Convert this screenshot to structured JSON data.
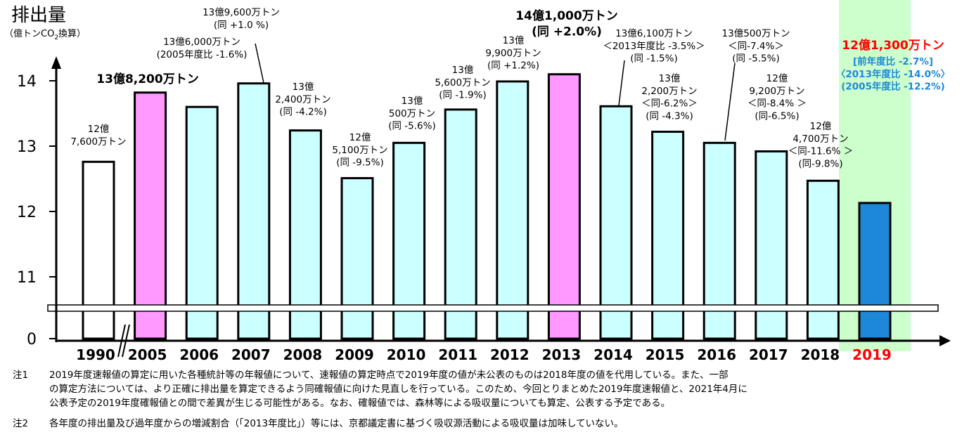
{
  "chart_data": {
    "type": "bar",
    "title": "排出量",
    "ylabel": "（億トンCO₂換算）",
    "ylabel_main": "（億トンCO",
    "ylabel_sub": "2",
    "ylabel_end": "換算）",
    "ylim": [
      11,
      14.5
    ],
    "axis_break": true,
    "y_ticks": [
      {
        "label": "14",
        "value": 14
      },
      {
        "label": "13",
        "value": 13
      },
      {
        "label": "12",
        "value": 12
      },
      {
        "label": "11",
        "value": 11
      },
      {
        "label": "0",
        "value": 0
      }
    ],
    "categories": [
      "1990",
      "2005",
      "2006",
      "2007",
      "2008",
      "2009",
      "2010",
      "2011",
      "2012",
      "2013",
      "2014",
      "2015",
      "2016",
      "2017",
      "2018",
      "2019"
    ],
    "values": [
      12.76,
      13.82,
      13.6,
      13.96,
      13.24,
      12.51,
      13.05,
      13.56,
      13.99,
      14.1,
      13.61,
      13.22,
      13.05,
      12.92,
      12.47,
      12.13
    ],
    "bar_colors": [
      "#ffffff",
      "#ff99ff",
      "#ccffff",
      "#ccffff",
      "#ccffff",
      "#ccffff",
      "#ccffff",
      "#ccffff",
      "#ccffff",
      "#ff99ff",
      "#ccffff",
      "#ccffff",
      "#ccffff",
      "#ccffff",
      "#ccffff",
      "#1e88d8"
    ],
    "highlight_color": "#ccffcc",
    "highlight_category": "2019",
    "highlight_label_color": "#ff0000",
    "labels": [
      {
        "category": "1990",
        "lines": [
          "12億",
          "7,600万トン"
        ],
        "bold": false,
        "color": "#000000"
      },
      {
        "category": "2005",
        "lines": [
          "13億8,200万トン"
        ],
        "bold": true,
        "color": "#000000"
      },
      {
        "category": "2006",
        "lines": [
          "13億6,000万トン",
          "(2005年度比 -1.6%)"
        ],
        "bold": false,
        "color": "#000000"
      },
      {
        "category": "2007",
        "lines": [
          "13億9,600万トン",
          "(同 +1.0 %)"
        ],
        "bold": false,
        "color": "#000000"
      },
      {
        "category": "2008",
        "lines": [
          "13億",
          "2,400万トン",
          "(同 -4.2%)"
        ],
        "bold": false,
        "color": "#000000"
      },
      {
        "category": "2009",
        "lines": [
          "12億",
          "5,100万トン",
          "(同 -9.5%)"
        ],
        "bold": false,
        "color": "#000000"
      },
      {
        "category": "2010",
        "lines": [
          "13億",
          "500万トン",
          "(同 -5.6%)"
        ],
        "bold": false,
        "color": "#000000"
      },
      {
        "category": "2011",
        "lines": [
          "13億",
          "5,600万トン",
          "(同 -1.9%)"
        ],
        "bold": false,
        "color": "#000000"
      },
      {
        "category": "2012",
        "lines": [
          "13億",
          "9,900万トン",
          "(同 +1.2%)"
        ],
        "bold": false,
        "color": "#000000"
      },
      {
        "category": "2013",
        "lines": [
          "14億1,000万トン",
          "(同 +2.0%)"
        ],
        "bold": true,
        "color": "#000000"
      },
      {
        "category": "2014",
        "lines": [
          "13億6,100万トン",
          "＜2013年度比 -3.5%＞",
          "(同 -1.5%)"
        ],
        "bold": false,
        "color": "#000000"
      },
      {
        "category": "2015",
        "lines": [
          "13億",
          "2,200万トン",
          "＜同-6.2%＞",
          "(同 -4.3%)"
        ],
        "bold": false,
        "color": "#000000"
      },
      {
        "category": "2016",
        "lines": [
          "13億500万トン",
          "＜同-7.4%＞",
          "(同 -5.5%)"
        ],
        "bold": false,
        "color": "#000000"
      },
      {
        "category": "2017",
        "lines": [
          "12億",
          "9,200万トン",
          "＜同-8.4% ＞",
          "(同-6.5%)"
        ],
        "bold": false,
        "color": "#000000"
      },
      {
        "category": "2018",
        "lines": [
          "12億",
          "4,700万トン",
          "＜同-11.6% ＞",
          "(同-9.8%)"
        ],
        "bold": false,
        "color": "#000000"
      },
      {
        "category": "2019",
        "lines": [
          "12億1,300万トン"
        ],
        "bold": true,
        "color": "#ff0000"
      },
      {
        "category": "2019",
        "lines": [
          "[前年度比 -2.7%]",
          "〈2013年度比 -14.0%〉",
          "(2005年度比 -12.2%)"
        ],
        "bold": true,
        "color": "#1e88d8"
      }
    ]
  },
  "notes": [
    {
      "num": "注1",
      "lines": [
        "2019年度速報値の算定に用いた各種統計等の年報値について、速報値の算定時点で2019年度の値が未公表のものは2018年度の値を代用している。また、一部",
        "の算定方法については、より正確に排出量を算定できるよう同確報値に向けた見直しを行っている。このため、今回とりまとめた2019年度速報値と、2021年4月に",
        "公表予定の2019年度確報値との間で差異が生じる可能性がある。なお、確報値では、森林等による吸収量についても算定、公表する予定である。"
      ]
    },
    {
      "num": "注2",
      "lines": [
        "各年度の排出量及び過年度からの増減割合（「2013年度比」）等には、京都議定書に基づく吸収源活動による吸収量は加味していない。"
      ]
    }
  ]
}
